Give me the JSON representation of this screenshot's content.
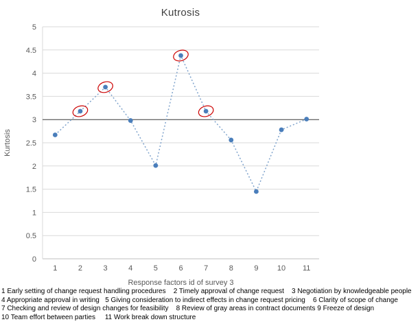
{
  "chart_data": {
    "type": "line",
    "title": "Kutrosis",
    "xlabel": "Response factors id of survey 3",
    "ylabel": "Kurtosis",
    "categories": [
      1,
      2,
      3,
      4,
      5,
      6,
      7,
      8,
      9,
      10,
      11
    ],
    "series": [
      {
        "name": "Kurtosis",
        "values": [
          2.67,
          3.18,
          3.7,
          2.98,
          2.01,
          4.38,
          3.18,
          2.56,
          1.45,
          2.78,
          3.01
        ]
      }
    ],
    "ylim": [
      0,
      5
    ],
    "ytick_step": 0.5,
    "grid": true,
    "legend": "none",
    "line_style": "dotted",
    "reference_line_y": 3,
    "circled_categories": [
      2,
      3,
      6,
      7
    ],
    "colors": {
      "marker": "#4a7ebb",
      "line": "#7fa3cc",
      "gridline": "#d9d9d9",
      "axis_line": "#bfbfbf",
      "axis_text": "#595959",
      "reference_line": "#404040",
      "highlight_circle": "#cc0000"
    }
  },
  "footnotes": [
    "1 Early setting of change request handling procedures    2 Timely approval of change request    3 Negotiation by knowledgeable people",
    "4 Appropriate approval in writing   5 Giving consideration to indirect effects in change request pricing    6 Clarity of scope of change",
    "7 Checking and review of design changes for feasibility    8 Review of gray areas in contract documents 9 Freeze of design",
    "10 Team effort between parties     11 Work break down structure"
  ]
}
